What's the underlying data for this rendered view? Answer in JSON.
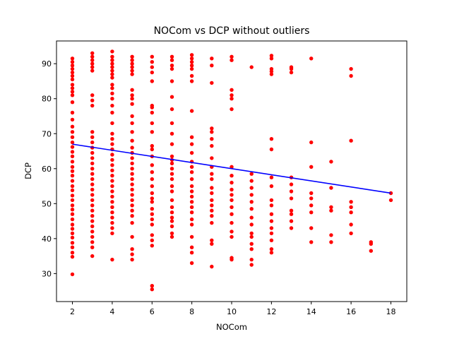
{
  "chart_data": {
    "type": "scatter",
    "title": "NOCom vs DCP without outliers",
    "xlabel": "NOCom",
    "ylabel": "DCP",
    "xlim": [
      1.2,
      18.8
    ],
    "ylim": [
      22,
      96.5
    ],
    "xticks": [
      2,
      4,
      6,
      8,
      10,
      12,
      14,
      16,
      18
    ],
    "yticks": [
      30,
      40,
      50,
      60,
      70,
      80,
      90
    ],
    "grid": false,
    "point_color": "#ff0000",
    "line_color": "#0000ff",
    "points": [
      [
        2,
        29.8
      ],
      [
        2,
        34.8
      ],
      [
        2,
        36.0
      ],
      [
        2,
        37.5
      ],
      [
        2,
        38.8
      ],
      [
        2,
        40.3
      ],
      [
        2,
        41.5
      ],
      [
        2,
        42.8
      ],
      [
        2,
        44.0
      ],
      [
        2,
        45.5
      ],
      [
        2,
        47.0
      ],
      [
        2,
        48.3
      ],
      [
        2,
        49.5
      ],
      [
        2,
        51.0
      ],
      [
        2,
        52.3
      ],
      [
        2,
        53.8
      ],
      [
        2,
        55.0
      ],
      [
        2,
        56.5
      ],
      [
        2,
        58.0
      ],
      [
        2,
        59.3
      ],
      [
        2,
        60.5
      ],
      [
        2,
        62.0
      ],
      [
        2,
        63.5
      ],
      [
        2,
        64.8
      ],
      [
        2,
        66.2
      ],
      [
        2,
        67.5
      ],
      [
        2,
        69.0
      ],
      [
        2,
        70.5
      ],
      [
        2,
        72.0
      ],
      [
        2,
        74.0
      ],
      [
        2,
        76.0
      ],
      [
        2,
        79.0
      ],
      [
        2,
        81.0
      ],
      [
        2,
        82.0
      ],
      [
        2,
        83.0
      ],
      [
        2,
        84.0
      ],
      [
        2,
        85.5
      ],
      [
        2,
        86.5
      ],
      [
        2,
        87.5
      ],
      [
        2,
        88.5
      ],
      [
        2,
        89.5
      ],
      [
        2,
        90.5
      ],
      [
        2,
        91.5
      ],
      [
        3,
        35.0
      ],
      [
        3,
        37.5
      ],
      [
        3,
        39.0
      ],
      [
        3,
        40.5
      ],
      [
        3,
        42.0
      ],
      [
        3,
        43.5
      ],
      [
        3,
        45.0
      ],
      [
        3,
        46.5
      ],
      [
        3,
        48.0
      ],
      [
        3,
        49.5
      ],
      [
        3,
        51.0
      ],
      [
        3,
        52.5
      ],
      [
        3,
        54.0
      ],
      [
        3,
        55.5
      ],
      [
        3,
        57.0
      ],
      [
        3,
        58.5
      ],
      [
        3,
        60.0
      ],
      [
        3,
        61.5
      ],
      [
        3,
        63.0
      ],
      [
        3,
        64.5
      ],
      [
        3,
        66.0
      ],
      [
        3,
        67.5
      ],
      [
        3,
        69.0
      ],
      [
        3,
        70.5
      ],
      [
        3,
        78.0
      ],
      [
        3,
        79.5
      ],
      [
        3,
        81.0
      ],
      [
        3,
        88.0
      ],
      [
        3,
        89.0
      ],
      [
        3,
        90.0
      ],
      [
        3,
        91.0
      ],
      [
        3,
        92.0
      ],
      [
        3,
        93.0
      ],
      [
        4,
        34.0
      ],
      [
        4,
        41.5
      ],
      [
        4,
        43.0
      ],
      [
        4,
        44.5
      ],
      [
        4,
        46.0
      ],
      [
        4,
        47.5
      ],
      [
        4,
        49.0
      ],
      [
        4,
        50.5
      ],
      [
        4,
        52.0
      ],
      [
        4,
        53.5
      ],
      [
        4,
        55.0
      ],
      [
        4,
        56.5
      ],
      [
        4,
        58.0
      ],
      [
        4,
        59.5
      ],
      [
        4,
        61.0
      ],
      [
        4,
        62.5
      ],
      [
        4,
        64.0
      ],
      [
        4,
        65.5
      ],
      [
        4,
        67.0
      ],
      [
        4,
        68.5
      ],
      [
        4,
        70.0
      ],
      [
        4,
        73.0
      ],
      [
        4,
        76.0
      ],
      [
        4,
        78.0
      ],
      [
        4,
        80.0
      ],
      [
        4,
        81.5
      ],
      [
        4,
        83.0
      ],
      [
        4,
        84.0
      ],
      [
        4,
        86.0
      ],
      [
        4,
        87.0
      ],
      [
        4,
        88.0
      ],
      [
        4,
        89.0
      ],
      [
        4,
        90.0
      ],
      [
        4,
        91.0
      ],
      [
        4,
        92.0
      ],
      [
        4,
        93.5
      ],
      [
        5,
        34.0
      ],
      [
        5,
        35.5
      ],
      [
        5,
        37.0
      ],
      [
        5,
        40.5
      ],
      [
        5,
        44.5
      ],
      [
        5,
        46.5
      ],
      [
        5,
        48.0
      ],
      [
        5,
        49.5
      ],
      [
        5,
        51.0
      ],
      [
        5,
        52.5
      ],
      [
        5,
        54.0
      ],
      [
        5,
        55.5
      ],
      [
        5,
        57.0
      ],
      [
        5,
        58.5
      ],
      [
        5,
        60.0
      ],
      [
        5,
        61.5
      ],
      [
        5,
        63.0
      ],
      [
        5,
        64.5
      ],
      [
        5,
        66.0
      ],
      [
        5,
        68.0
      ],
      [
        5,
        70.5
      ],
      [
        5,
        73.0
      ],
      [
        5,
        75.0
      ],
      [
        5,
        78.5
      ],
      [
        5,
        80.0
      ],
      [
        5,
        81.0
      ],
      [
        5,
        82.5
      ],
      [
        5,
        87.0
      ],
      [
        5,
        88.0
      ],
      [
        5,
        89.0
      ],
      [
        5,
        90.0
      ],
      [
        5,
        91.0
      ],
      [
        5,
        92.0
      ],
      [
        6,
        25.5
      ],
      [
        6,
        26.5
      ],
      [
        6,
        38.0
      ],
      [
        6,
        39.5
      ],
      [
        6,
        41.0
      ],
      [
        6,
        44.0
      ],
      [
        6,
        45.5
      ],
      [
        6,
        47.0
      ],
      [
        6,
        48.5
      ],
      [
        6,
        50.5
      ],
      [
        6,
        51.5
      ],
      [
        6,
        53.0
      ],
      [
        6,
        55.0
      ],
      [
        6,
        57.0
      ],
      [
        6,
        59.0
      ],
      [
        6,
        61.0
      ],
      [
        6,
        63.5
      ],
      [
        6,
        65.5
      ],
      [
        6,
        66.5
      ],
      [
        6,
        70.5
      ],
      [
        6,
        73.0
      ],
      [
        6,
        76.0
      ],
      [
        6,
        77.5
      ],
      [
        6,
        78.0
      ],
      [
        6,
        85.0
      ],
      [
        6,
        87.5
      ],
      [
        6,
        89.0
      ],
      [
        6,
        90.5
      ],
      [
        6,
        92.0
      ],
      [
        7,
        40.5
      ],
      [
        7,
        41.5
      ],
      [
        7,
        43.5
      ],
      [
        7,
        45.0
      ],
      [
        7,
        46.0
      ],
      [
        7,
        47.5
      ],
      [
        7,
        49.0
      ],
      [
        7,
        51.0
      ],
      [
        7,
        53.5
      ],
      [
        7,
        55.0
      ],
      [
        7,
        57.0
      ],
      [
        7,
        58.5
      ],
      [
        7,
        60.0
      ],
      [
        7,
        61.5
      ],
      [
        7,
        62.5
      ],
      [
        7,
        63.5
      ],
      [
        7,
        67.0
      ],
      [
        7,
        70.0
      ],
      [
        7,
        73.0
      ],
      [
        7,
        77.0
      ],
      [
        7,
        80.5
      ],
      [
        7,
        85.0
      ],
      [
        7,
        88.5
      ],
      [
        7,
        89.5
      ],
      [
        7,
        91.0
      ],
      [
        7,
        92.0
      ],
      [
        8,
        33.0
      ],
      [
        8,
        36.0
      ],
      [
        8,
        37.5
      ],
      [
        8,
        40.5
      ],
      [
        8,
        44.0
      ],
      [
        8,
        45.5
      ],
      [
        8,
        47.5
      ],
      [
        8,
        49.0
      ],
      [
        8,
        50.5
      ],
      [
        8,
        52.0
      ],
      [
        8,
        53.5
      ],
      [
        8,
        55.0
      ],
      [
        8,
        57.0
      ],
      [
        8,
        59.0
      ],
      [
        8,
        60.5
      ],
      [
        8,
        62.0
      ],
      [
        8,
        64.5
      ],
      [
        8,
        67.0
      ],
      [
        8,
        69.0
      ],
      [
        8,
        76.5
      ],
      [
        8,
        85.0
      ],
      [
        8,
        86.5
      ],
      [
        8,
        88.5
      ],
      [
        8,
        89.5
      ],
      [
        8,
        90.5
      ],
      [
        8,
        91.5
      ],
      [
        8,
        92.5
      ],
      [
        9,
        32.0
      ],
      [
        9,
        38.5
      ],
      [
        9,
        39.5
      ],
      [
        9,
        44.5
      ],
      [
        9,
        46.5
      ],
      [
        9,
        48.0
      ],
      [
        9,
        49.5
      ],
      [
        9,
        51.0
      ],
      [
        9,
        53.0
      ],
      [
        9,
        54.5
      ],
      [
        9,
        57.0
      ],
      [
        9,
        58.5
      ],
      [
        9,
        60.5
      ],
      [
        9,
        63.0
      ],
      [
        9,
        66.5
      ],
      [
        9,
        68.5
      ],
      [
        9,
        70.5
      ],
      [
        9,
        71.5
      ],
      [
        9,
        84.5
      ],
      [
        9,
        89.5
      ],
      [
        9,
        91.5
      ],
      [
        10,
        34.0
      ],
      [
        10,
        34.5
      ],
      [
        10,
        40.5
      ],
      [
        10,
        42.0
      ],
      [
        10,
        44.5
      ],
      [
        10,
        47.0
      ],
      [
        10,
        49.0
      ],
      [
        10,
        51.0
      ],
      [
        10,
        52.5
      ],
      [
        10,
        54.0
      ],
      [
        10,
        56.0
      ],
      [
        10,
        58.0
      ],
      [
        10,
        60.5
      ],
      [
        10,
        77.0
      ],
      [
        10,
        80.0
      ],
      [
        10,
        81.0
      ],
      [
        10,
        82.5
      ],
      [
        10,
        91.0
      ],
      [
        10,
        92.0
      ],
      [
        11,
        32.5
      ],
      [
        11,
        34.0
      ],
      [
        11,
        37.0
      ],
      [
        11,
        38.5
      ],
      [
        11,
        40.5
      ],
      [
        11,
        41.5
      ],
      [
        11,
        44.0
      ],
      [
        11,
        46.0
      ],
      [
        11,
        48.5
      ],
      [
        11,
        50.5
      ],
      [
        11,
        52.5
      ],
      [
        11,
        54.5
      ],
      [
        11,
        56.5
      ],
      [
        11,
        58.5
      ],
      [
        11,
        89.0
      ],
      [
        12,
        36.0
      ],
      [
        12,
        37.0
      ],
      [
        12,
        39.5
      ],
      [
        12,
        41.5
      ],
      [
        12,
        43.0
      ],
      [
        12,
        45.0
      ],
      [
        12,
        47.0
      ],
      [
        12,
        49.5
      ],
      [
        12,
        51.0
      ],
      [
        12,
        55.0
      ],
      [
        12,
        57.5
      ],
      [
        12,
        65.5
      ],
      [
        12,
        68.5
      ],
      [
        12,
        87.0
      ],
      [
        12,
        87.8
      ],
      [
        12,
        88.5
      ],
      [
        12,
        91.5
      ],
      [
        12,
        92.3
      ],
      [
        13,
        43.0
      ],
      [
        13,
        45.0
      ],
      [
        13,
        47.0
      ],
      [
        13,
        48.0
      ],
      [
        13,
        51.5
      ],
      [
        13,
        53.5
      ],
      [
        13,
        55.5
      ],
      [
        13,
        57.5
      ],
      [
        13,
        87.5
      ],
      [
        13,
        88.5
      ],
      [
        13,
        89.0
      ],
      [
        14,
        39.0
      ],
      [
        14,
        43.0
      ],
      [
        14,
        47.5
      ],
      [
        14,
        49.5
      ],
      [
        14,
        51.5
      ],
      [
        14,
        53.0
      ],
      [
        14,
        60.5
      ],
      [
        14,
        67.5
      ],
      [
        14,
        91.5
      ],
      [
        15,
        39.0
      ],
      [
        15,
        41.0
      ],
      [
        15,
        48.0
      ],
      [
        15,
        49.0
      ],
      [
        15,
        54.5
      ],
      [
        15,
        62.0
      ],
      [
        16,
        41.5
      ],
      [
        16,
        44.0
      ],
      [
        16,
        47.5
      ],
      [
        16,
        49.0
      ],
      [
        16,
        50.5
      ],
      [
        16,
        68.0
      ],
      [
        16,
        86.5
      ],
      [
        16,
        88.5
      ],
      [
        17,
        36.5
      ],
      [
        17,
        38.5
      ],
      [
        17,
        39.0
      ],
      [
        18,
        51.0
      ],
      [
        18,
        53.0
      ]
    ],
    "regression": {
      "x": [
        2,
        18
      ],
      "y": [
        67.0,
        53.0
      ]
    }
  }
}
